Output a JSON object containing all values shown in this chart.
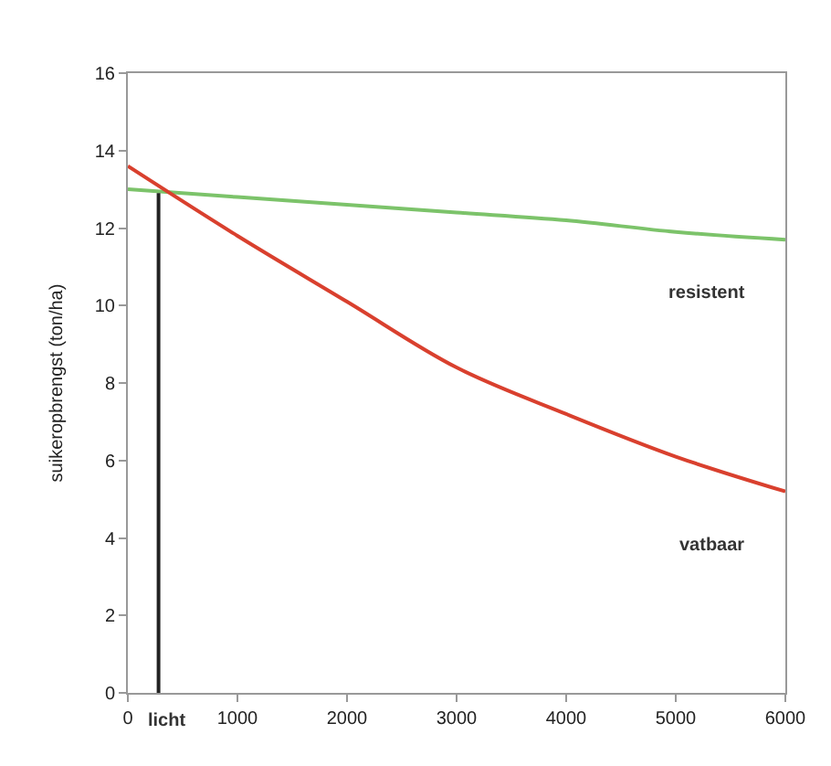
{
  "chart_data": {
    "type": "line",
    "ylabel": "suikeropbrengst (ton/ha)",
    "x": [
      0,
      1000,
      2000,
      3000,
      4000,
      5000,
      6000
    ],
    "series": [
      {
        "name": "resistent",
        "color": "#7cc36a",
        "values": [
          13.0,
          12.8,
          12.6,
          12.4,
          12.2,
          11.9,
          11.7
        ]
      },
      {
        "name": "vatbaar",
        "color": "#d9402e",
        "values": [
          13.6,
          11.8,
          10.1,
          8.4,
          7.2,
          6.1,
          5.2
        ]
      },
      {
        "name": "licht",
        "color": "#222222",
        "x": [
          280,
          280
        ],
        "values": [
          0,
          12.9
        ]
      }
    ],
    "xlim": [
      0,
      6000
    ],
    "xticks": [
      0,
      1000,
      2000,
      3000,
      4000,
      5000,
      6000
    ],
    "ylim": [
      0,
      16
    ],
    "yticks": [
      0,
      2,
      4,
      6,
      8,
      10,
      12,
      14,
      16
    ],
    "grid": false,
    "legend": false,
    "marker": "none",
    "line_style": "solid"
  }
}
